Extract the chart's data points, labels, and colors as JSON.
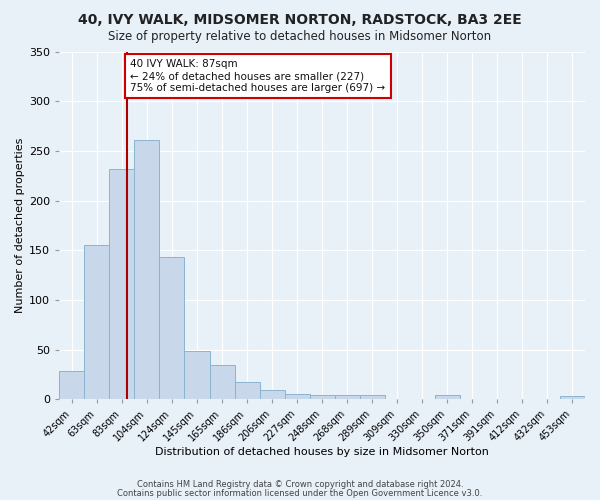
{
  "title": "40, IVY WALK, MIDSOMER NORTON, RADSTOCK, BA3 2EE",
  "subtitle": "Size of property relative to detached houses in Midsomer Norton",
  "xlabel": "Distribution of detached houses by size in Midsomer Norton",
  "ylabel": "Number of detached properties",
  "bar_color": "#c8d8ea",
  "bar_edgecolor": "#8ab4d0",
  "bg_color": "#e8f0f8",
  "grid_color": "#ffffff",
  "annotation_line1": "40 IVY WALK: 87sqm",
  "annotation_line2": "← 24% of detached houses are smaller (227)",
  "annotation_line3": "75% of semi-detached houses are larger (697) →",
  "vline_color": "#aa0000",
  "vline_x_index": 2,
  "footer1": "Contains HM Land Registry data © Crown copyright and database right 2024.",
  "footer2": "Contains public sector information licensed under the Open Government Licence v3.0.",
  "categories": [
    "42sqm",
    "63sqm",
    "83sqm",
    "104sqm",
    "124sqm",
    "145sqm",
    "165sqm",
    "186sqm",
    "206sqm",
    "227sqm",
    "248sqm",
    "268sqm",
    "289sqm",
    "309sqm",
    "330sqm",
    "350sqm",
    "371sqm",
    "391sqm",
    "412sqm",
    "432sqm",
    "453sqm"
  ],
  "values": [
    28,
    155,
    232,
    261,
    143,
    49,
    35,
    17,
    9,
    5,
    4,
    4,
    4,
    0,
    0,
    4,
    0,
    0,
    0,
    0,
    3
  ],
  "ylim": [
    0,
    350
  ],
  "yticks": [
    0,
    50,
    100,
    150,
    200,
    250,
    300,
    350
  ]
}
